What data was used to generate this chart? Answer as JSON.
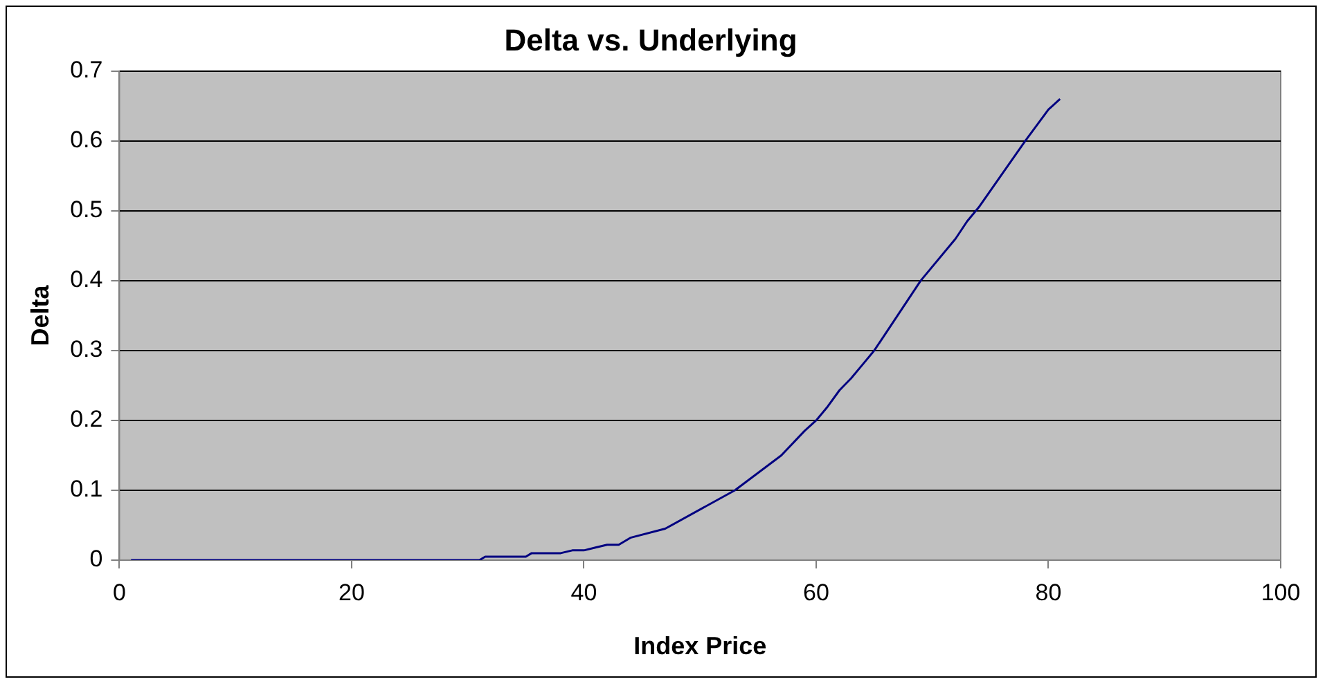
{
  "chart_data": {
    "type": "line",
    "title": "Delta vs. Underlying",
    "xlabel": "Index Price",
    "ylabel": "Delta",
    "series": [
      {
        "color": "#000080",
        "x": [
          1,
          31,
          31.5,
          35,
          35.5,
          38,
          39,
          40,
          41,
          42,
          43,
          44,
          47,
          53,
          57,
          59,
          60,
          61,
          62,
          63,
          64,
          65,
          69,
          72,
          73,
          74,
          78,
          80,
          81
        ],
        "values": [
          0,
          0,
          0.005,
          0.005,
          0.01,
          0.01,
          0.014,
          0.014,
          0.018,
          0.022,
          0.022,
          0.032,
          0.045,
          0.1,
          0.15,
          0.185,
          0.2,
          0.22,
          0.243,
          0.26,
          0.28,
          0.3,
          0.4,
          0.46,
          0.485,
          0.505,
          0.6,
          0.645,
          0.66
        ]
      }
    ],
    "xlim": [
      0,
      100
    ],
    "xticks": [
      0,
      20,
      40,
      60,
      80,
      100
    ],
    "ylim": [
      0,
      0.7
    ],
    "yticks": [
      0,
      0.1,
      0.2,
      0.3,
      0.4,
      0.5,
      0.6,
      0.7
    ],
    "grid": "y",
    "legend": false,
    "marker": "none",
    "line_style": "solid"
  }
}
